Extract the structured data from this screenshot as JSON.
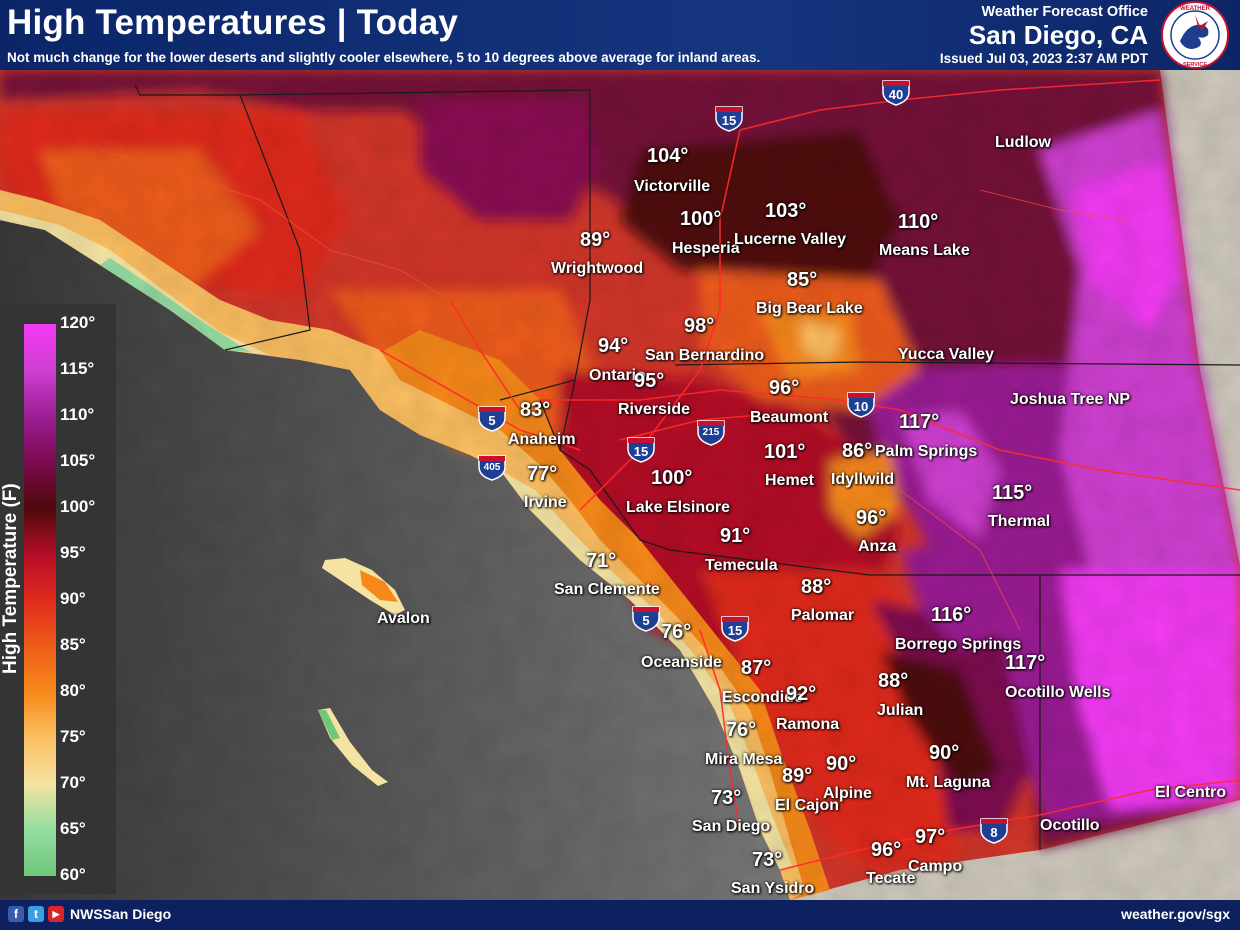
{
  "header": {
    "title": "High Temperatures | Today",
    "subtitle": "Not much change for the lower deserts and slightly cooler elsewhere, 5 to 10 degrees above average for inland areas.",
    "office_label": "Weather Forecast Office",
    "office_name": "San Diego, CA",
    "issued": "Issued Jul 03, 2023 2:37 AM PDT",
    "logo_icon": "nws-logo-icon"
  },
  "legend": {
    "title": "High Temperature (F)",
    "bands": [
      {
        "label": "120°",
        "color": "#f33af4"
      },
      {
        "label": "115°",
        "color": "#cf3fd2"
      },
      {
        "label": "110°",
        "color": "#9b1e94"
      },
      {
        "label": "105°",
        "color": "#7d0950"
      },
      {
        "label": "100°",
        "color": "#4d0a0a"
      },
      {
        "label": "95°",
        "color": "#b40d28"
      },
      {
        "label": "90°",
        "color": "#e02a1c"
      },
      {
        "label": "85°",
        "color": "#ee5c1a"
      },
      {
        "label": "80°",
        "color": "#f7891a"
      },
      {
        "label": "75°",
        "color": "#fcbf62"
      },
      {
        "label": "70°",
        "color": "#f4e3a2"
      },
      {
        "label": "65°",
        "color": "#94dca0"
      },
      {
        "label": "60°",
        "color": "#6fc77a"
      }
    ]
  },
  "locations": [
    {
      "temp": "104°",
      "name": "Victorville"
    },
    {
      "temp": "100°",
      "name": "Hesperia"
    },
    {
      "temp": "103°",
      "name": "Lucerne Valley"
    },
    {
      "temp": "110°",
      "name": "Means Lake"
    },
    {
      "temp": "",
      "name": "Ludlow"
    },
    {
      "temp": "89°",
      "name": "Wrightwood"
    },
    {
      "temp": "85°",
      "name": "Big Bear Lake"
    },
    {
      "temp": "98°",
      "name": "San Bernardino"
    },
    {
      "temp": "94°",
      "name": "Ontario"
    },
    {
      "temp": "95°",
      "name": "Riverside"
    },
    {
      "temp": "",
      "name": "Yucca Valley"
    },
    {
      "temp": "96°",
      "name": "Beaumont"
    },
    {
      "temp": "",
      "name": "Joshua Tree NP"
    },
    {
      "temp": "83°",
      "name": "Anaheim"
    },
    {
      "temp": "117°",
      "name": "Palm Springs"
    },
    {
      "temp": "101°",
      "name": "Hemet"
    },
    {
      "temp": "86°",
      "name": "Idyllwild"
    },
    {
      "temp": "77°",
      "name": "Irvine"
    },
    {
      "temp": "100°",
      "name": "Lake Elsinore"
    },
    {
      "temp": "115°",
      "name": "Thermal"
    },
    {
      "temp": "96°",
      "name": "Anza"
    },
    {
      "temp": "91°",
      "name": "Temecula"
    },
    {
      "temp": "71°",
      "name": "San Clemente"
    },
    {
      "temp": "88°",
      "name": "Palomar"
    },
    {
      "temp": "",
      "name": "Avalon"
    },
    {
      "temp": "116°",
      "name": "Borrego Springs"
    },
    {
      "temp": "76°",
      "name": "Oceanside"
    },
    {
      "temp": "117°",
      "name": "Ocotillo Wells"
    },
    {
      "temp": "87°",
      "name": "Escondido"
    },
    {
      "temp": "92°",
      "name": "Ramona"
    },
    {
      "temp": "88°",
      "name": "Julian"
    },
    {
      "temp": "76°",
      "name": "Mira Mesa"
    },
    {
      "temp": "90°",
      "name": "Mt. Laguna"
    },
    {
      "temp": "89°",
      "name": "El Cajon"
    },
    {
      "temp": "90°",
      "name": "Alpine"
    },
    {
      "temp": "",
      "name": "El Centro"
    },
    {
      "temp": "73°",
      "name": "San Diego"
    },
    {
      "temp": "",
      "name": "Ocotillo"
    },
    {
      "temp": "97°",
      "name": "Campo"
    },
    {
      "temp": "96°",
      "name": "Tecate"
    },
    {
      "temp": "73°",
      "name": "San Ysidro"
    }
  ],
  "highways": [
    "15",
    "40",
    "5",
    "405",
    "15",
    "215",
    "10",
    "5",
    "15",
    "8"
  ],
  "footer": {
    "social": "NWSSan Diego",
    "website": "weather.gov/sgx",
    "icons": [
      "facebook-icon",
      "twitter-icon",
      "youtube-icon"
    ]
  }
}
